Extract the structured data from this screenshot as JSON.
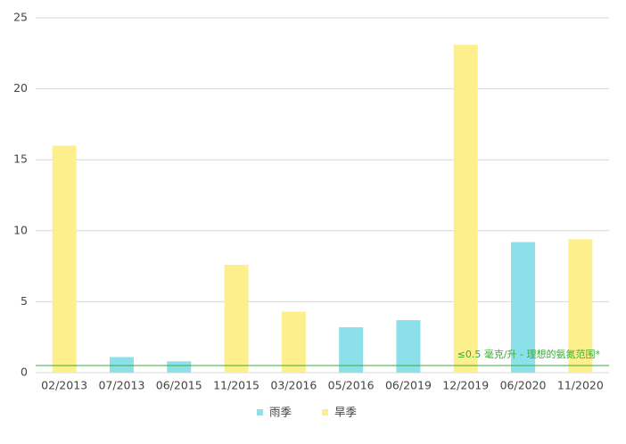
{
  "chart_data": {
    "type": "bar",
    "categories": [
      "02/2013",
      "07/2013",
      "06/2015",
      "11/2015",
      "03/2016",
      "05/2016",
      "06/2019",
      "12/2019",
      "06/2020",
      "11/2020"
    ],
    "series": [
      {
        "name": "雨季",
        "color": "#8ce0ea",
        "values": [
          null,
          1.1,
          0.8,
          null,
          null,
          3.2,
          3.7,
          null,
          9.2,
          null
        ]
      },
      {
        "name": "旱季",
        "color": "#fdef8b",
        "values": [
          16.0,
          null,
          null,
          7.6,
          4.3,
          null,
          null,
          23.1,
          null,
          9.4
        ]
      }
    ],
    "ylim": [
      0,
      25
    ],
    "yticks": [
      0,
      5,
      10,
      15,
      20,
      25
    ],
    "grid": true,
    "reference_line": {
      "value": 0.5,
      "label": "≤0.5 毫克/升 - 理想的氨氮范围*",
      "color": "#3aaa35"
    },
    "legend": "bottom"
  }
}
